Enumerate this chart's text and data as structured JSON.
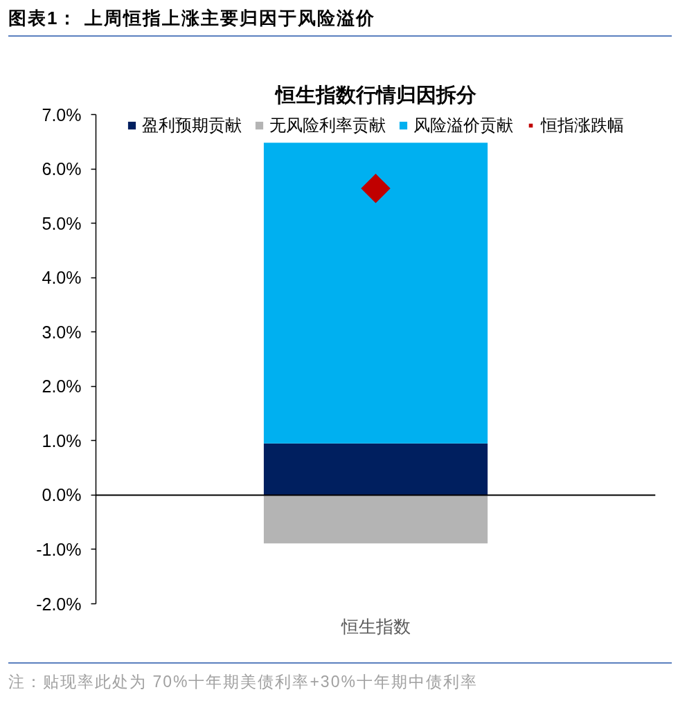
{
  "chart_data": {
    "type": "bar",
    "title": "图表1： 上周恒指上涨主要归因于风险溢价",
    "subtitle": "恒生指数行情归因拆分",
    "categories": [
      "恒生指数"
    ],
    "stacked": true,
    "series": [
      {
        "name": "盈利预期贡献",
        "color": "#001f5f",
        "values": [
          0.95
        ]
      },
      {
        "name": "无风险利率贡献",
        "color": "#b4b4b4",
        "values": [
          -0.89
        ]
      },
      {
        "name": "风险溢价贡献",
        "color": "#00b0f0",
        "values": [
          5.53
        ]
      },
      {
        "name": "恒指涨跌幅",
        "type": "scatter",
        "color": "#c00000",
        "x": [
          "恒生指数"
        ],
        "values": [
          5.64
        ]
      }
    ],
    "ylim": [
      -2,
      7
    ],
    "yticks": [
      {
        "value": -2,
        "label": "-2.0%"
      },
      {
        "value": -1,
        "label": "-1.0%"
      },
      {
        "value": 0,
        "label": "0.0%"
      },
      {
        "value": 1,
        "label": "1.0%"
      },
      {
        "value": 2,
        "label": "2.0%"
      },
      {
        "value": 3,
        "label": "3.0%"
      },
      {
        "value": 4,
        "label": "4.0%"
      },
      {
        "value": 5,
        "label": "5.0%"
      },
      {
        "value": 6,
        "label": "6.0%"
      },
      {
        "value": 7,
        "label": "7.0%"
      }
    ],
    "legend": "top",
    "marker": "diamond",
    "annotations": [
      "注：贴现率此处为 70%十年期美债利率+30%十年期中债利率"
    ]
  }
}
